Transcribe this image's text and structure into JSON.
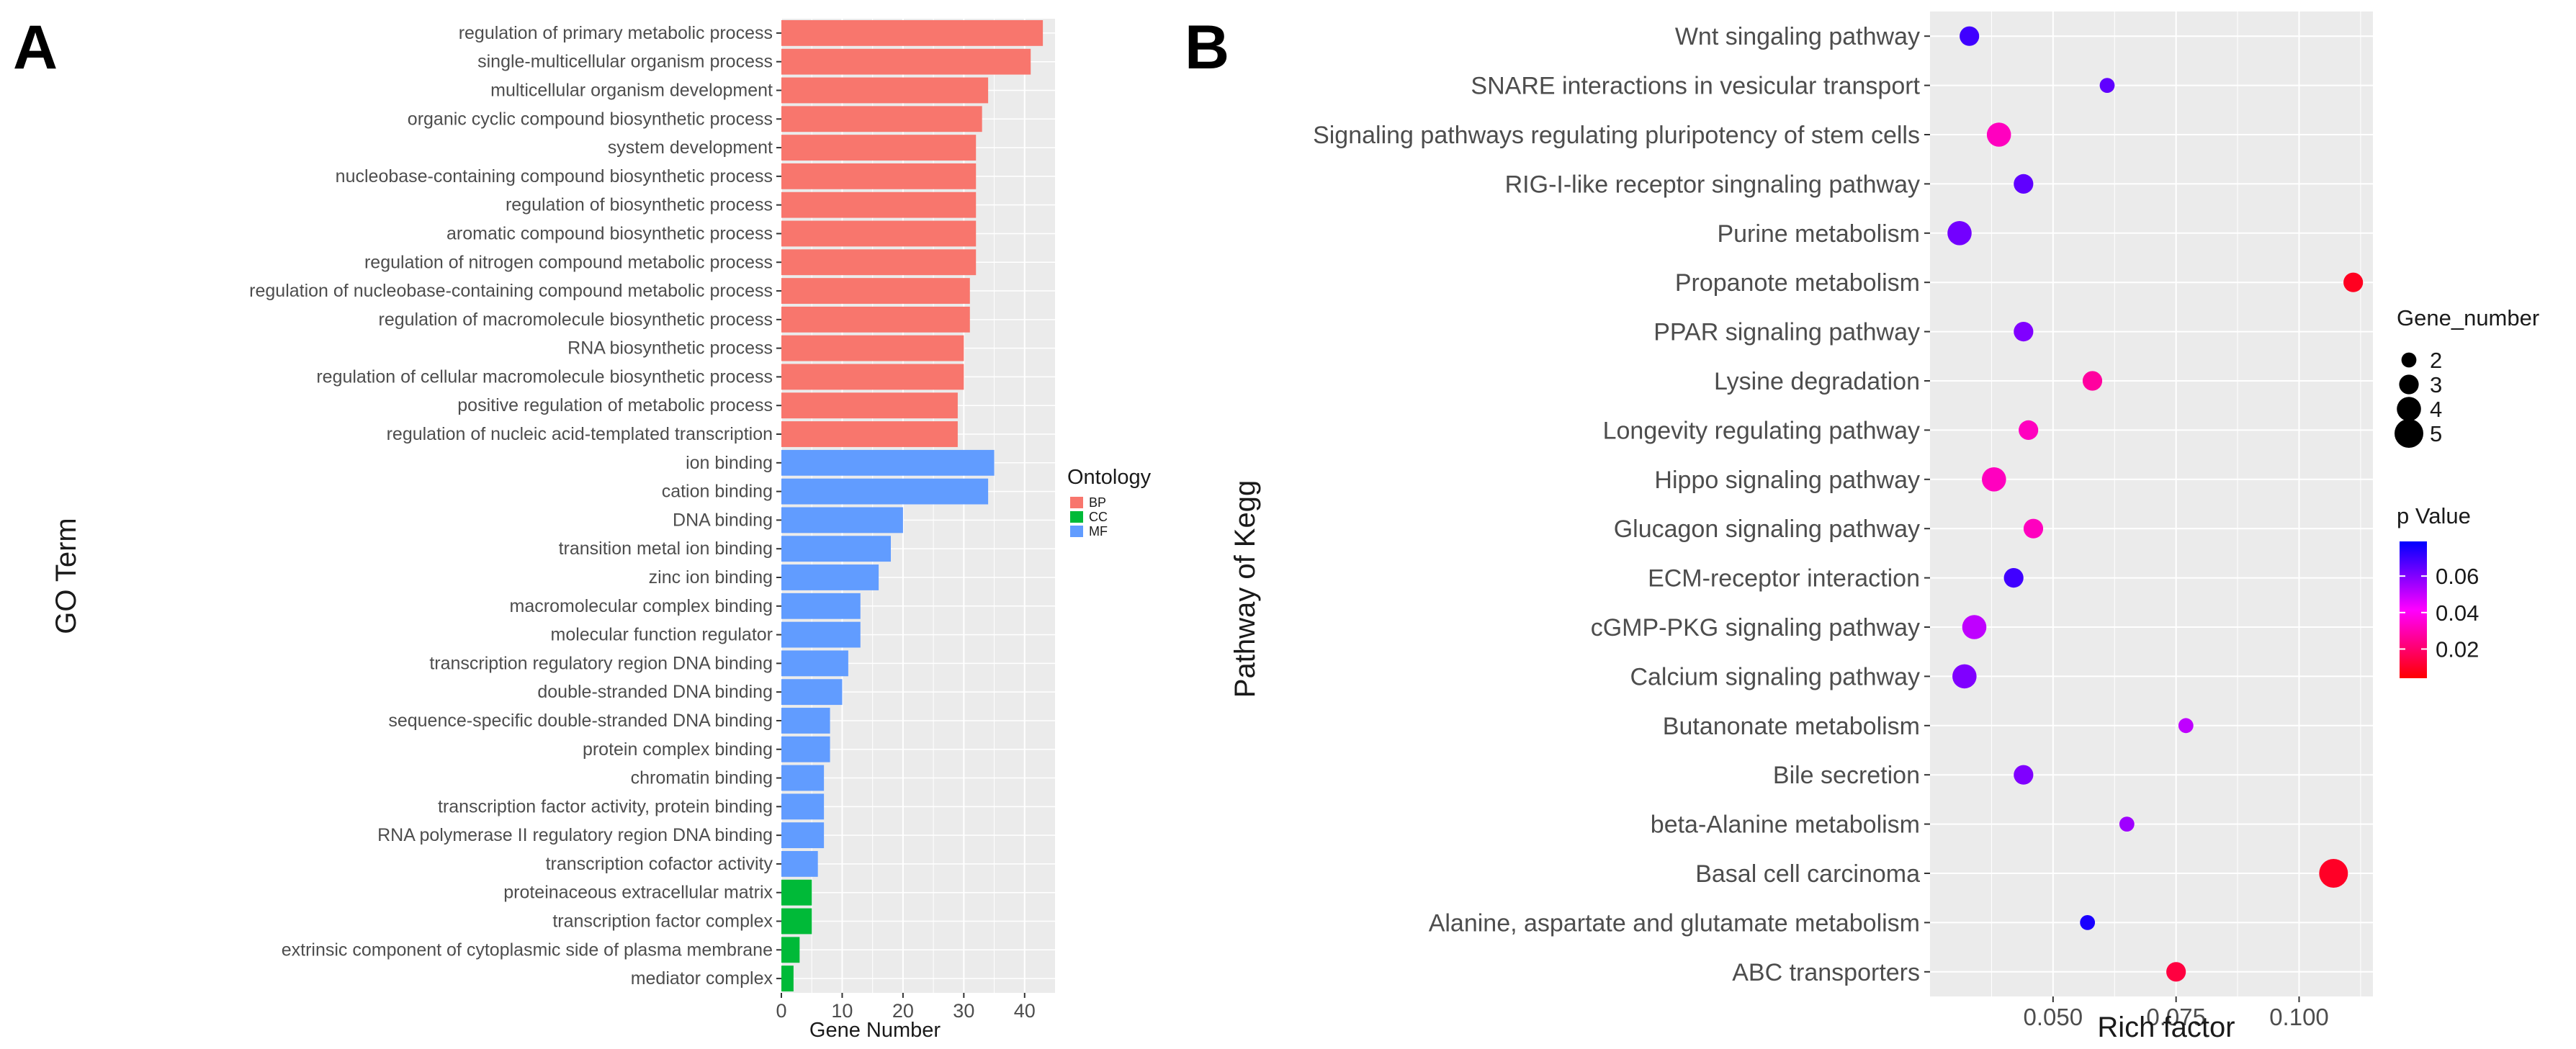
{
  "panel_labels": [
    "A",
    "B"
  ],
  "colors": {
    "panel_bg": "#ebebeb",
    "grid": "#ffffff",
    "text_dark": "#1a1a1a",
    "text_tick": "#4d4d4d",
    "BP": "#f8766d",
    "CC": "#00ba38",
    "MF": "#619cff",
    "p_high": "#0000ff",
    "p_mid": "#ff00ff",
    "p_low": "#ff0000"
  },
  "chart_data": [
    {
      "type": "bar",
      "orientation": "horizontal",
      "title": "",
      "xlabel": "Gene Number",
      "ylabel": "GO Term",
      "xlim": [
        0,
        45
      ],
      "xticks": [
        0,
        10,
        20,
        30,
        40
      ],
      "legend": {
        "title": "Ontology",
        "entries": [
          "BP",
          "CC",
          "MF"
        ],
        "position": "right"
      },
      "categories": [
        "regulation of primary metabolic process",
        "single-multicellular organism process",
        "multicellular organism development",
        "organic cyclic compound biosynthetic process",
        "system development",
        "nucleobase-containing compound biosynthetic process",
        "regulation of biosynthetic process",
        "aromatic compound biosynthetic process",
        "regulation of nitrogen compound metabolic process",
        "regulation of nucleobase-containing compound metabolic process",
        "regulation of macromolecule biosynthetic process",
        "RNA biosynthetic process",
        "regulation of cellular macromolecule biosynthetic process",
        "positive regulation of metabolic process",
        "regulation of nucleic acid-templated transcription",
        "ion binding",
        "cation binding",
        "DNA binding",
        "transition metal ion binding",
        "zinc ion binding",
        "macromolecular complex binding",
        "molecular function regulator",
        "transcription regulatory region DNA binding",
        "double-stranded DNA binding",
        "sequence-specific double-stranded DNA binding",
        "protein complex binding",
        "chromatin binding",
        "transcription factor activity, protein binding",
        "RNA polymerase II regulatory region DNA binding",
        "transcription cofactor activity",
        "proteinaceous extracellular matrix",
        "transcription factor complex",
        "extrinsic component of cytoplasmic side of plasma membrane",
        "mediator complex"
      ],
      "values": [
        43,
        41,
        34,
        33,
        32,
        32,
        32,
        32,
        32,
        31,
        31,
        30,
        30,
        29,
        29,
        35,
        34,
        20,
        18,
        16,
        13,
        13,
        11,
        10,
        8,
        8,
        7,
        7,
        7,
        6,
        5,
        5,
        3,
        2
      ],
      "ontology": [
        "BP",
        "BP",
        "BP",
        "BP",
        "BP",
        "BP",
        "BP",
        "BP",
        "BP",
        "BP",
        "BP",
        "BP",
        "BP",
        "BP",
        "BP",
        "MF",
        "MF",
        "MF",
        "MF",
        "MF",
        "MF",
        "MF",
        "MF",
        "MF",
        "MF",
        "MF",
        "MF",
        "MF",
        "MF",
        "MF",
        "CC",
        "CC",
        "CC",
        "CC"
      ]
    },
    {
      "type": "scatter",
      "title": "",
      "xlabel": "Rich factor",
      "ylabel": "Pathway of Kegg",
      "xlim": [
        0.025,
        0.115
      ],
      "xticks": [
        0.05,
        0.075,
        0.1
      ],
      "xtick_labels": [
        "0.050",
        "0.075",
        "0.100"
      ],
      "categories": [
        "Wnt singaling pathway",
        "SNARE interactions in vesicular transport",
        "Signaling pathways regulating pluripotency of stem cells",
        "RIG-I-like receptor singnaling pathway",
        "Purine metabolism",
        "Propanote metabolism",
        "PPAR signaling pathway",
        "Lysine degradation",
        "Longevity regulating pathway",
        "Hippo signaling pathway",
        "Glucagon  signaling pathway",
        "ECM-receptor interaction",
        "cGMP-PKG signaling pathway",
        "Calcium signaling pathway",
        "Butanonate metabolism",
        "Bile secretion",
        "beta-Alanine metabolism",
        "Basal cell carcinoma",
        "Alanine, aspartate and glutamate metabolism",
        "ABC transporters"
      ],
      "rich_factor": [
        0.033,
        0.061,
        0.039,
        0.044,
        0.031,
        0.111,
        0.044,
        0.058,
        0.045,
        0.038,
        0.046,
        0.042,
        0.034,
        0.032,
        0.077,
        0.044,
        0.065,
        0.107,
        0.057,
        0.075
      ],
      "gene_number": [
        3,
        2,
        4,
        3,
        4,
        3,
        3,
        3,
        3,
        4,
        3,
        3,
        4,
        4,
        2,
        3,
        2,
        5,
        2,
        3
      ],
      "p_value": [
        0.07,
        0.065,
        0.03,
        0.065,
        0.062,
        0.005,
        0.06,
        0.025,
        0.03,
        0.03,
        0.03,
        0.07,
        0.05,
        0.06,
        0.05,
        0.06,
        0.055,
        0.006,
        0.076,
        0.01
      ],
      "size_legend": {
        "title": "Gene_number",
        "values": [
          "2",
          "3",
          "4",
          "5"
        ],
        "position": "right"
      },
      "color_legend": {
        "title": "p Value",
        "labels": [
          "0.06",
          "0.04",
          "0.02"
        ],
        "position": "right"
      }
    }
  ]
}
